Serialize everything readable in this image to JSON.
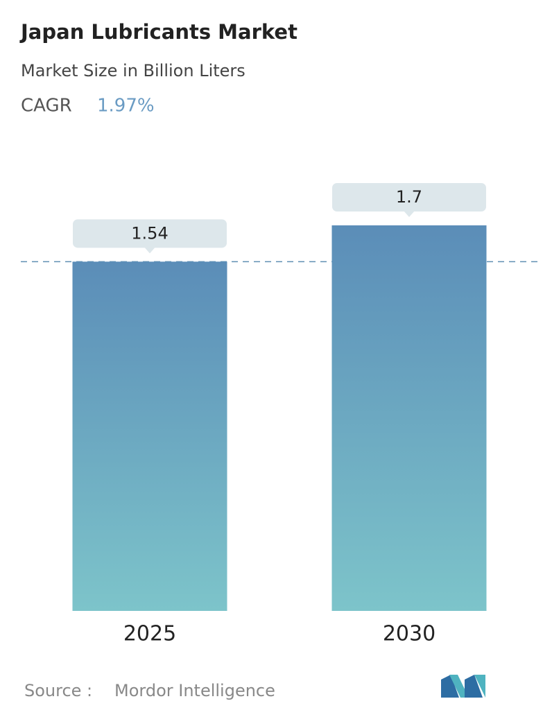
{
  "chart_data": {
    "type": "bar",
    "title": "Japan Lubricants Market",
    "subtitle": "Market Size in Billion Liters",
    "cagr_label": "CAGR",
    "cagr_value": "1.97%",
    "categories": [
      "2025",
      "2030"
    ],
    "values": [
      1.54,
      1.7
    ],
    "color_top": "#5b8db8",
    "color_bottom": "#7dc4ca",
    "source_label": "Source :",
    "source": "Mordor Intelligence"
  }
}
